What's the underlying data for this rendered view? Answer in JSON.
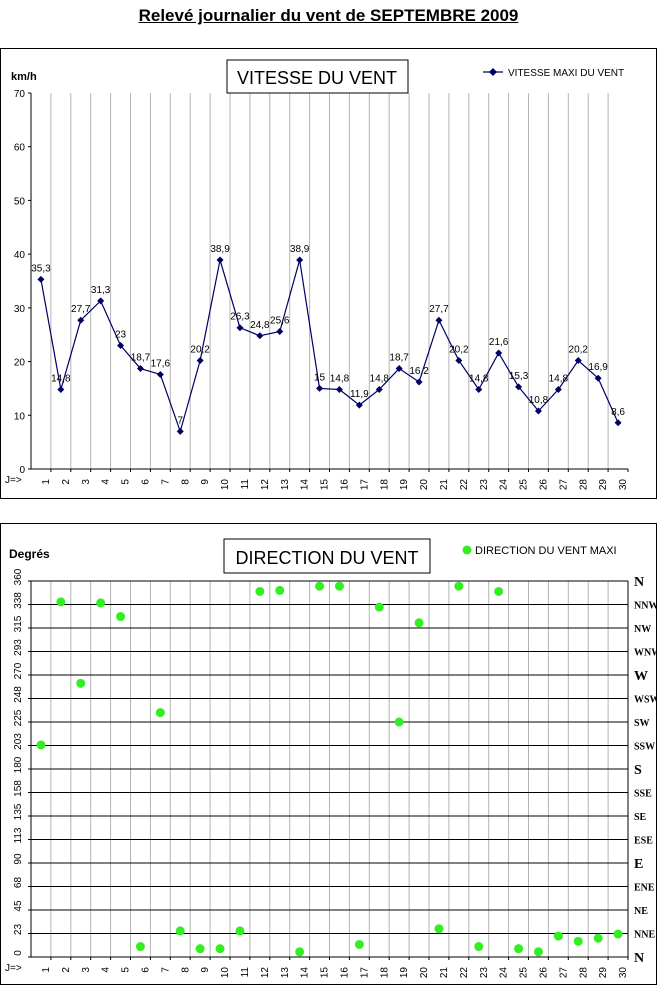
{
  "page_title": "Relevé journalier du vent de SEPTEMBRE 2009",
  "chart_data": [
    {
      "type": "line",
      "title": "VITESSE DU VENT",
      "ylabel": "km/h",
      "xlabel": "J=>",
      "ylim": [
        0,
        70
      ],
      "yticks": [
        0,
        10,
        20,
        30,
        40,
        50,
        60,
        70
      ],
      "grid": "vertical",
      "legend_position": "top-right",
      "x": [
        1,
        2,
        3,
        4,
        5,
        6,
        7,
        8,
        9,
        10,
        11,
        12,
        13,
        14,
        15,
        16,
        17,
        18,
        19,
        20,
        21,
        22,
        23,
        24,
        25,
        26,
        27,
        28,
        29,
        30
      ],
      "series": [
        {
          "name": "VITESSE MAXI DU VENT",
          "color": "#000066",
          "values": [
            35.3,
            14.8,
            27.7,
            31.3,
            23,
            18.7,
            17.6,
            7,
            20.2,
            38.9,
            26.3,
            24.8,
            25.6,
            38.9,
            15,
            14.8,
            11.9,
            14.8,
            18.7,
            16.2,
            27.7,
            20.2,
            14.8,
            21.6,
            15.3,
            10.8,
            14.8,
            20.2,
            16.9,
            8.6
          ],
          "labels": [
            "35,3",
            "14,8",
            "27,7",
            "31,3",
            "23",
            "18,7",
            "17,6",
            "7",
            "20,2",
            "38,9",
            "26,3",
            "24,8",
            "25,6",
            "38,9",
            "15",
            "14,8",
            "11,9",
            "14,8",
            "18,7",
            "16,2",
            "27,7",
            "20,2",
            "14,8",
            "21,6",
            "15,3",
            "10,8",
            "14,8",
            "20,2",
            "16,9",
            "8,6"
          ]
        }
      ]
    },
    {
      "type": "scatter",
      "title": "DIRECTION DU VENT",
      "ylabel": "Degrés",
      "xlabel": "J=>",
      "ylim": [
        0,
        360
      ],
      "yticks": [
        0,
        23,
        45,
        68,
        90,
        113,
        135,
        158,
        180,
        203,
        225,
        248,
        270,
        293,
        315,
        338,
        360
      ],
      "compass_labels": [
        "N",
        "NNE",
        "NE",
        "ENE",
        "E",
        "ESE",
        "SE",
        "SSE",
        "S",
        "SSW",
        "SW",
        "WSW",
        "W",
        "WNW",
        "NW",
        "NNW",
        "N"
      ],
      "grid": "horizontal-and-vertical",
      "legend_position": "top-right",
      "x": [
        1,
        2,
        3,
        4,
        5,
        6,
        7,
        8,
        9,
        10,
        11,
        12,
        13,
        14,
        15,
        16,
        17,
        18,
        19,
        20,
        21,
        22,
        23,
        24,
        25,
        26,
        27,
        28,
        29,
        30
      ],
      "series": [
        {
          "name": "DIRECTION DU VENT MAXI",
          "color": "#33ee22",
          "values": [
            203,
            340,
            262,
            339,
            326,
            10,
            234,
            25,
            8,
            8,
            25,
            350,
            351,
            5,
            355,
            355,
            12,
            335,
            225,
            320,
            27,
            355,
            10,
            350,
            8,
            5,
            20,
            15,
            18,
            22
          ]
        }
      ]
    }
  ]
}
